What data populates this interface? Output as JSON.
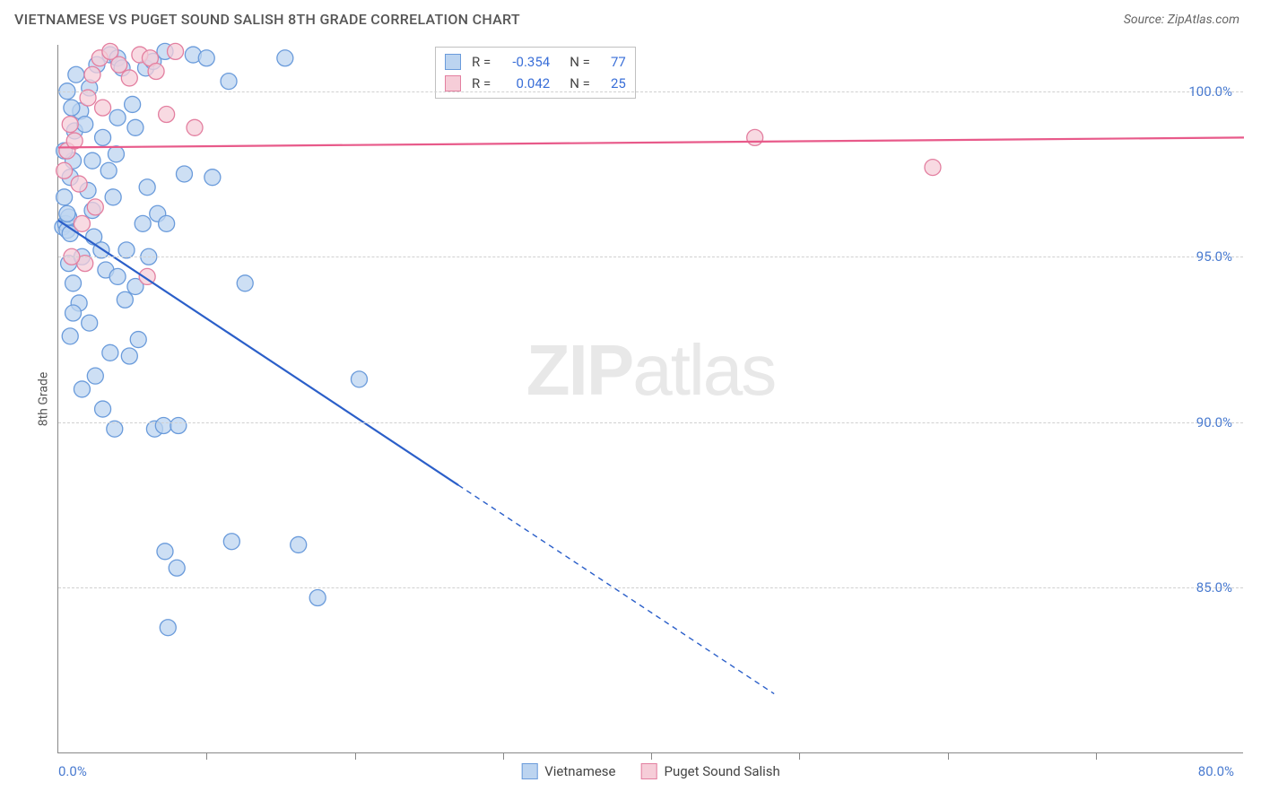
{
  "title": "VIETNAMESE VS PUGET SOUND SALISH 8TH GRADE CORRELATION CHART",
  "source": "Source: ZipAtlas.com",
  "ylabel": "8th Grade",
  "watermark_prefix": "ZIP",
  "watermark_suffix": "atlas",
  "chart": {
    "type": "scatter",
    "xlim": [
      0,
      80
    ],
    "ylim": [
      80,
      101.4
    ],
    "xaxis_min_label": "0.0%",
    "xaxis_max_label": "80.0%",
    "xticks": [
      10,
      20,
      30,
      40,
      50,
      60,
      70
    ],
    "yticks": [
      {
        "v": 85,
        "label": "85.0%"
      },
      {
        "v": 90,
        "label": "90.0%"
      },
      {
        "v": 95,
        "label": "95.0%"
      },
      {
        "v": 100,
        "label": "100.0%"
      }
    ],
    "grid_color": "#d0d0d0",
    "background_color": "#ffffff",
    "series": [
      {
        "name": "Vietnamese",
        "fill": "#bcd4f0",
        "stroke": "#6a9bdb",
        "line_color": "#2b5fc9",
        "marker_radius": 9,
        "R": "-0.354",
        "N": "77",
        "trend": {
          "x1": 0,
          "y1": 96.1,
          "x2": 27,
          "y2": 88.1,
          "extrap_x2": 48.3,
          "extrap_y2": 81.8
        },
        "points": [
          [
            0.3,
            95.9
          ],
          [
            0.5,
            96.0
          ],
          [
            0.6,
            95.8
          ],
          [
            0.7,
            96.2
          ],
          [
            0.8,
            95.7
          ],
          [
            0.6,
            96.3
          ],
          [
            0.4,
            96.8
          ],
          [
            0.8,
            97.4
          ],
          [
            1.0,
            97.9
          ],
          [
            0.4,
            98.2
          ],
          [
            1.1,
            98.8
          ],
          [
            1.5,
            99.4
          ],
          [
            0.6,
            100.0
          ],
          [
            1.2,
            100.5
          ],
          [
            2.1,
            100.1
          ],
          [
            2.6,
            100.8
          ],
          [
            3.5,
            101.1
          ],
          [
            4.0,
            101.0
          ],
          [
            4.3,
            100.7
          ],
          [
            4.0,
            99.2
          ],
          [
            5.0,
            99.6
          ],
          [
            5.9,
            100.7
          ],
          [
            6.4,
            100.9
          ],
          [
            7.2,
            101.2
          ],
          [
            9.1,
            101.1
          ],
          [
            10.0,
            101.0
          ],
          [
            11.5,
            100.3
          ],
          [
            15.3,
            101.0
          ],
          [
            2.0,
            97.0
          ],
          [
            2.3,
            97.9
          ],
          [
            3.0,
            98.6
          ],
          [
            3.4,
            97.6
          ],
          [
            3.9,
            98.1
          ],
          [
            5.2,
            98.9
          ],
          [
            6.0,
            97.1
          ],
          [
            6.7,
            96.3
          ],
          [
            7.3,
            96.0
          ],
          [
            8.5,
            97.5
          ],
          [
            10.4,
            97.4
          ],
          [
            12.6,
            94.2
          ],
          [
            0.7,
            94.8
          ],
          [
            1.0,
            94.2
          ],
          [
            1.4,
            93.6
          ],
          [
            2.1,
            93.0
          ],
          [
            2.4,
            95.6
          ],
          [
            2.9,
            95.2
          ],
          [
            3.2,
            94.6
          ],
          [
            4.0,
            94.4
          ],
          [
            4.5,
            93.7
          ],
          [
            5.2,
            94.1
          ],
          [
            6.1,
            95.0
          ],
          [
            3.5,
            92.1
          ],
          [
            4.8,
            92.0
          ],
          [
            5.4,
            92.5
          ],
          [
            0.8,
            92.6
          ],
          [
            1.6,
            91.0
          ],
          [
            2.5,
            91.4
          ],
          [
            3.0,
            90.4
          ],
          [
            3.8,
            89.8
          ],
          [
            6.5,
            89.8
          ],
          [
            7.1,
            89.9
          ],
          [
            8.1,
            89.9
          ],
          [
            7.2,
            86.1
          ],
          [
            8.0,
            85.6
          ],
          [
            11.7,
            86.4
          ],
          [
            16.2,
            86.3
          ],
          [
            17.5,
            84.7
          ],
          [
            7.4,
            83.8
          ],
          [
            2.3,
            96.4
          ],
          [
            3.7,
            96.8
          ],
          [
            0.9,
            99.5
          ],
          [
            1.8,
            99.0
          ],
          [
            1.0,
            93.3
          ],
          [
            1.6,
            95.0
          ],
          [
            5.7,
            96.0
          ],
          [
            4.6,
            95.2
          ],
          [
            20.3,
            91.3
          ]
        ]
      },
      {
        "name": "Puget Sound Salish",
        "fill": "#f6cdd8",
        "stroke": "#e37fa0",
        "line_color": "#e85a8a",
        "marker_radius": 9,
        "R": "0.042",
        "N": "25",
        "trend": {
          "x1": 0,
          "y1": 98.3,
          "x2": 80,
          "y2": 98.6
        },
        "points": [
          [
            0.4,
            97.6
          ],
          [
            0.6,
            98.2
          ],
          [
            0.8,
            99.0
          ],
          [
            1.1,
            98.5
          ],
          [
            1.4,
            97.2
          ],
          [
            1.6,
            96.0
          ],
          [
            1.8,
            94.8
          ],
          [
            2.0,
            99.8
          ],
          [
            2.3,
            100.5
          ],
          [
            2.8,
            101.0
          ],
          [
            3.5,
            101.2
          ],
          [
            4.1,
            100.8
          ],
          [
            4.8,
            100.4
          ],
          [
            5.5,
            101.1
          ],
          [
            6.2,
            101.0
          ],
          [
            6.6,
            100.6
          ],
          [
            7.3,
            99.3
          ],
          [
            7.9,
            101.2
          ],
          [
            9.2,
            98.9
          ],
          [
            6.0,
            94.4
          ],
          [
            0.9,
            95.0
          ],
          [
            2.5,
            96.5
          ],
          [
            47.0,
            98.6
          ],
          [
            59.0,
            97.7
          ],
          [
            3.0,
            99.5
          ]
        ]
      }
    ]
  },
  "legend_bottom": [
    {
      "label": "Vietnamese",
      "fill": "#bcd4f0",
      "stroke": "#6a9bdb"
    },
    {
      "label": "Puget Sound Salish",
      "fill": "#f6cdd8",
      "stroke": "#e37fa0"
    }
  ]
}
